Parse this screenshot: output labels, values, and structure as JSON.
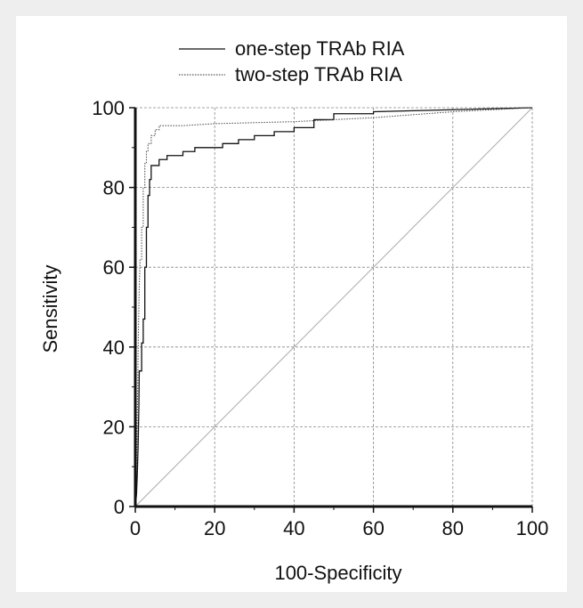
{
  "chart_data": {
    "type": "line",
    "title": "",
    "xlabel": "100-Specificity",
    "ylabel": "Sensitivity",
    "xlim": [
      0,
      100
    ],
    "ylim": [
      0,
      100
    ],
    "x_ticks": [
      0,
      20,
      40,
      60,
      80,
      100
    ],
    "y_ticks": [
      0,
      20,
      40,
      60,
      80,
      100
    ],
    "grid": true,
    "legend_position": "top",
    "reference_line": {
      "x": [
        0,
        100
      ],
      "y": [
        0,
        100
      ],
      "color": "#aaaaaa"
    },
    "series": [
      {
        "name": "one-step TRAb RIA",
        "style": "solid",
        "color": "#111111",
        "points": [
          [
            0,
            0
          ],
          [
            0.3,
            3
          ],
          [
            0.5,
            8
          ],
          [
            0.7,
            15
          ],
          [
            0.9,
            25
          ],
          [
            1.0,
            34
          ],
          [
            1.6,
            34
          ],
          [
            1.6,
            41
          ],
          [
            2.0,
            41
          ],
          [
            2.0,
            47
          ],
          [
            2.4,
            47
          ],
          [
            2.4,
            60
          ],
          [
            2.8,
            60
          ],
          [
            2.8,
            70
          ],
          [
            3.2,
            70
          ],
          [
            3.2,
            78
          ],
          [
            3.6,
            78
          ],
          [
            3.6,
            82
          ],
          [
            4.0,
            82
          ],
          [
            4.0,
            85.5
          ],
          [
            6.0,
            85.5
          ],
          [
            6.0,
            87
          ],
          [
            8.0,
            87
          ],
          [
            8.0,
            88
          ],
          [
            12.0,
            88
          ],
          [
            12.0,
            89
          ],
          [
            15.0,
            89
          ],
          [
            15.0,
            90
          ],
          [
            22.0,
            90
          ],
          [
            22.0,
            91
          ],
          [
            26.0,
            91
          ],
          [
            26.0,
            92
          ],
          [
            30.0,
            92
          ],
          [
            30.0,
            93
          ],
          [
            35.0,
            93
          ],
          [
            35.0,
            94
          ],
          [
            40.0,
            94
          ],
          [
            40.0,
            95
          ],
          [
            45.0,
            95
          ],
          [
            45.0,
            97
          ],
          [
            50.0,
            97
          ],
          [
            50.0,
            98.5
          ],
          [
            60.0,
            98.5
          ],
          [
            60.0,
            99
          ],
          [
            80.0,
            99.5
          ],
          [
            100,
            100
          ]
        ]
      },
      {
        "name": "two-step TRAb RIA",
        "style": "dotted",
        "color": "#555555",
        "points": [
          [
            0,
            0
          ],
          [
            0.2,
            5
          ],
          [
            0.4,
            15
          ],
          [
            0.6,
            30
          ],
          [
            0.8,
            45
          ],
          [
            1.0,
            55
          ],
          [
            1.2,
            62
          ],
          [
            1.6,
            62
          ],
          [
            1.6,
            70
          ],
          [
            2.0,
            70
          ],
          [
            2.0,
            80
          ],
          [
            2.4,
            80
          ],
          [
            2.4,
            86
          ],
          [
            2.8,
            86
          ],
          [
            2.8,
            89
          ],
          [
            3.2,
            89
          ],
          [
            3.2,
            91
          ],
          [
            4.0,
            91
          ],
          [
            4.0,
            93
          ],
          [
            5.0,
            93
          ],
          [
            5.0,
            94.5
          ],
          [
            6.0,
            94.5
          ],
          [
            6.0,
            95.5
          ],
          [
            12.0,
            95.5
          ],
          [
            20.0,
            96
          ],
          [
            40.0,
            96.5
          ],
          [
            60.0,
            97.5
          ],
          [
            80.0,
            99
          ],
          [
            100,
            100
          ]
        ]
      }
    ]
  }
}
